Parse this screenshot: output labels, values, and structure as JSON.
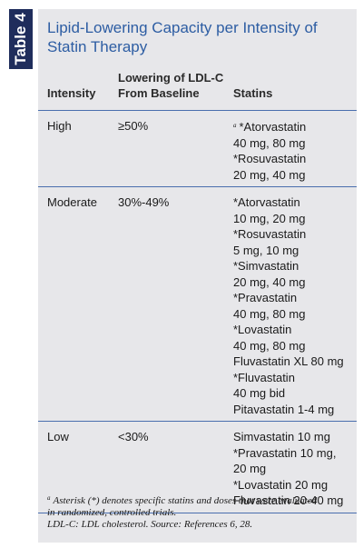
{
  "table_label": "Table 4",
  "title": "Lipid-Lowering Capacity per Intensity of Statin Therapy",
  "table": {
    "headers": [
      [
        "Intensity"
      ],
      [
        "Lowering of LDL-C",
        "From Baseline"
      ],
      [
        "Statins"
      ]
    ],
    "rows": [
      {
        "intensity": "High",
        "lowering": "≥50%",
        "statins": [
          {
            "marker": "a",
            "text": "*Atorvastatin"
          },
          {
            "text": "40 mg, 80 mg"
          },
          {
            "text": "*Rosuvastatin"
          },
          {
            "text": "20 mg, 40 mg"
          }
        ]
      },
      {
        "intensity": "Moderate",
        "lowering": "30%-49%",
        "statins": [
          {
            "text": "*Atorvastatin"
          },
          {
            "text": "10 mg, 20 mg"
          },
          {
            "text": "*Rosuvastatin"
          },
          {
            "text": "5 mg, 10 mg"
          },
          {
            "text": "*Simvastatin"
          },
          {
            "text": "20 mg, 40 mg"
          },
          {
            "text": "*Pravastatin"
          },
          {
            "text": "40 mg, 80 mg"
          },
          {
            "text": "*Lovastatin"
          },
          {
            "text": "40 mg, 80 mg"
          },
          {
            "text": "Fluvastatin XL 80 mg"
          },
          {
            "text": "*Fluvastatin"
          },
          {
            "text": "40 mg bid"
          },
          {
            "text": "Pitavastatin 1-4 mg"
          }
        ]
      },
      {
        "intensity": "Low",
        "lowering": "<30%",
        "statins": [
          {
            "text": "Simvastatin 10 mg"
          },
          {
            "text": "*Pravastatin 10 mg,"
          },
          {
            "text": "20 mg"
          },
          {
            "text": "*Lovastatin 20 mg"
          },
          {
            "text": "Fluvastatin 20-40 mg"
          }
        ]
      }
    ]
  },
  "notes": [
    {
      "marker": "a",
      "text": "Asterisk (*) denotes specific statins and doses that were evaluated in randomized, controlled trials."
    },
    {
      "text": "LDL-C: LDL cholesterol. Source: References 6, 28."
    }
  ]
}
